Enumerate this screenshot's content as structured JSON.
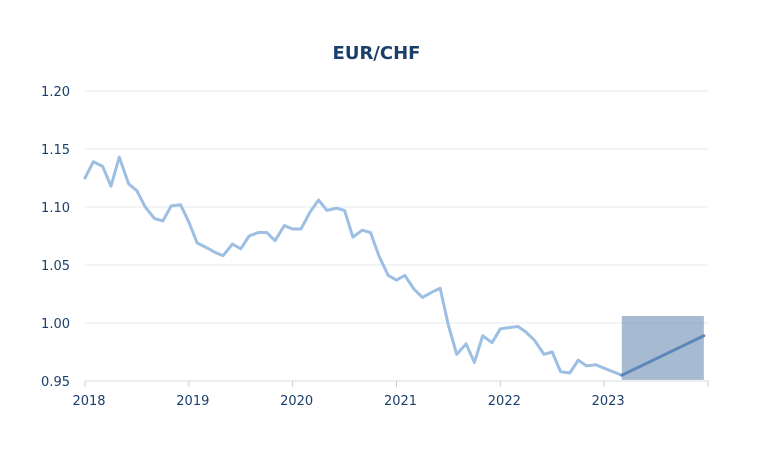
{
  "chart_data": {
    "type": "line",
    "title": "EUR/CHF",
    "xlabel": "",
    "ylabel": "",
    "xlim": [
      2018.0,
      2024.0
    ],
    "ylim": [
      0.95,
      1.2
    ],
    "yticks": [
      "0.95",
      "1.00",
      "1.05",
      "1.10",
      "1.15",
      "1.20"
    ],
    "xticks": [
      "2018",
      "2019",
      "2020",
      "2021",
      "2022",
      "2023"
    ],
    "grid": true,
    "colors": {
      "history": "#9cbfe3",
      "forecast": "#5d87bb",
      "band": "#6f8fb4",
      "text": "#1b3f6b"
    },
    "series": [
      {
        "values": [
          [
            2018.0,
            1.125
          ],
          [
            2018.08,
            1.139
          ],
          [
            2018.17,
            1.135
          ],
          [
            2018.25,
            1.118
          ],
          [
            2018.33,
            1.143
          ],
          [
            2018.42,
            1.12
          ],
          [
            2018.5,
            1.114
          ],
          [
            2018.58,
            1.1
          ],
          [
            2018.67,
            1.09
          ],
          [
            2018.75,
            1.088
          ],
          [
            2018.83,
            1.101
          ],
          [
            2018.92,
            1.102
          ],
          [
            2019.0,
            1.087
          ],
          [
            2019.08,
            1.069
          ],
          [
            2019.17,
            1.065
          ],
          [
            2019.25,
            1.061
          ],
          [
            2019.33,
            1.058
          ],
          [
            2019.42,
            1.068
          ],
          [
            2019.5,
            1.064
          ],
          [
            2019.58,
            1.075
          ],
          [
            2019.67,
            1.078
          ],
          [
            2019.75,
            1.078
          ],
          [
            2019.83,
            1.071
          ],
          [
            2019.92,
            1.084
          ],
          [
            2020.0,
            1.081
          ],
          [
            2020.08,
            1.081
          ],
          [
            2020.17,
            1.096
          ],
          [
            2020.25,
            1.106
          ],
          [
            2020.33,
            1.097
          ],
          [
            2020.42,
            1.099
          ],
          [
            2020.5,
            1.097
          ],
          [
            2020.58,
            1.074
          ],
          [
            2020.67,
            1.08
          ],
          [
            2020.75,
            1.078
          ],
          [
            2020.83,
            1.058
          ],
          [
            2020.92,
            1.041
          ],
          [
            2021.0,
            1.037
          ],
          [
            2021.08,
            1.041
          ],
          [
            2021.17,
            1.029
          ],
          [
            2021.25,
            1.022
          ],
          [
            2021.33,
            1.026
          ],
          [
            2021.42,
            1.03
          ],
          [
            2021.5,
            0.998
          ],
          [
            2021.58,
            0.973
          ],
          [
            2021.67,
            0.982
          ],
          [
            2021.75,
            0.966
          ],
          [
            2021.83,
            0.989
          ],
          [
            2021.92,
            0.983
          ],
          [
            2022.0,
            0.995
          ],
          [
            2022.17,
            0.997
          ],
          [
            2022.25,
            0.992
          ],
          [
            2022.33,
            0.985
          ],
          [
            2022.42,
            0.973
          ],
          [
            2022.5,
            0.975
          ],
          [
            2022.58,
            0.958
          ],
          [
            2022.67,
            0.957
          ],
          [
            2022.75,
            0.968
          ],
          [
            2022.83,
            0.963
          ],
          [
            2022.92,
            0.964
          ],
          [
            2023.0,
            0.961
          ],
          [
            2023.17,
            0.955
          ]
        ]
      },
      {
        "values": [
          [
            2023.17,
            0.955
          ],
          [
            2023.96,
            0.989
          ]
        ]
      }
    ],
    "forecast_band": {
      "x": [
        2023.17,
        2023.96
      ],
      "y": [
        0.951,
        1.006
      ]
    }
  }
}
